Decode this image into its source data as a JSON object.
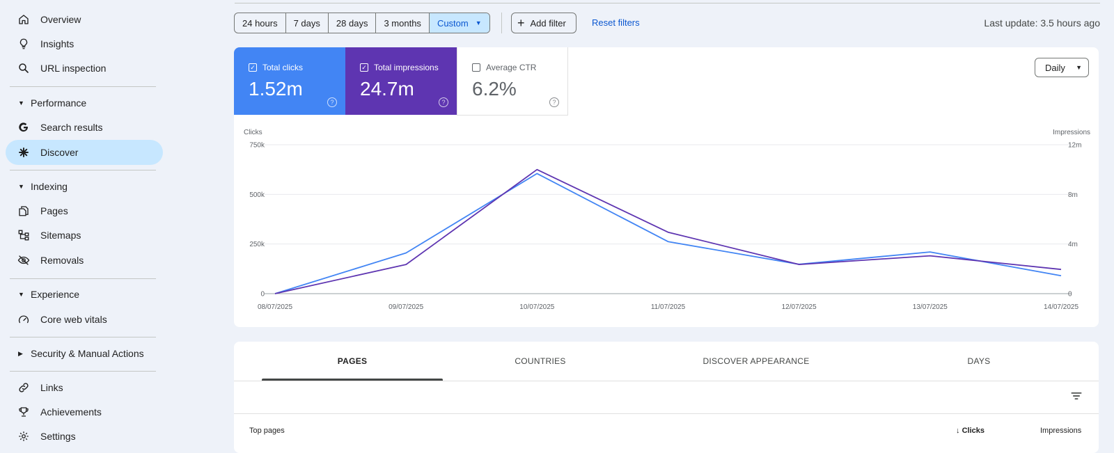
{
  "sidebar": {
    "overview": "Overview",
    "insights": "Insights",
    "url_inspection": "URL inspection",
    "performance": "Performance",
    "search_results": "Search results",
    "discover": "Discover",
    "indexing": "Indexing",
    "pages": "Pages",
    "sitemaps": "Sitemaps",
    "removals": "Removals",
    "experience": "Experience",
    "core_web_vitals": "Core web vitals",
    "security": "Security & Manual Actions",
    "links": "Links",
    "achievements": "Achievements",
    "settings": "Settings"
  },
  "toolbar": {
    "ranges": [
      "24 hours",
      "7 days",
      "28 days",
      "3 months",
      "Custom"
    ],
    "selected_range": "Custom",
    "add_filter": "Add filter",
    "reset_filters": "Reset filters",
    "last_update": "Last update: 3.5 hours ago"
  },
  "metrics": {
    "clicks_label": "Total clicks",
    "clicks_value": "1.52m",
    "impressions_label": "Total impressions",
    "impressions_value": "24.7m",
    "ctr_label": "Average CTR",
    "ctr_value": "6.2%",
    "granularity": "Daily"
  },
  "colors": {
    "clicks": "#4285f4",
    "impressions": "#5e35b1",
    "accent": "#0b57d0",
    "active_nav": "#c7e7ff"
  },
  "chart_data": {
    "type": "line",
    "ylabel_left": "Clicks",
    "ylabel_right": "Impressions",
    "x": [
      "08/07/2025",
      "09/07/2025",
      "10/07/2025",
      "11/07/2025",
      "12/07/2025",
      "13/07/2025",
      "14/07/2025"
    ],
    "yticks_left": [
      "0",
      "250k",
      "500k",
      "750k"
    ],
    "yticks_right": [
      "0",
      "4m",
      "8m",
      "12m"
    ],
    "ylim_left": [
      0,
      750000
    ],
    "ylim_right": [
      0,
      12000000
    ],
    "grid": true,
    "series": [
      {
        "axis": "left",
        "color": "#4285f4",
        "values": [
          0,
          205000,
          605000,
          262000,
          148000,
          210000,
          90000
        ]
      },
      {
        "axis": "right",
        "color": "#5e35b1",
        "values": [
          0,
          2350000,
          10000000,
          4950000,
          2350000,
          3050000,
          1950000
        ]
      }
    ]
  },
  "tabs": [
    "PAGES",
    "COUNTRIES",
    "DISCOVER APPEARANCE",
    "DAYS"
  ],
  "table": {
    "col_top_pages": "Top pages",
    "col_clicks": "Clicks",
    "col_impressions": "Impressions"
  }
}
